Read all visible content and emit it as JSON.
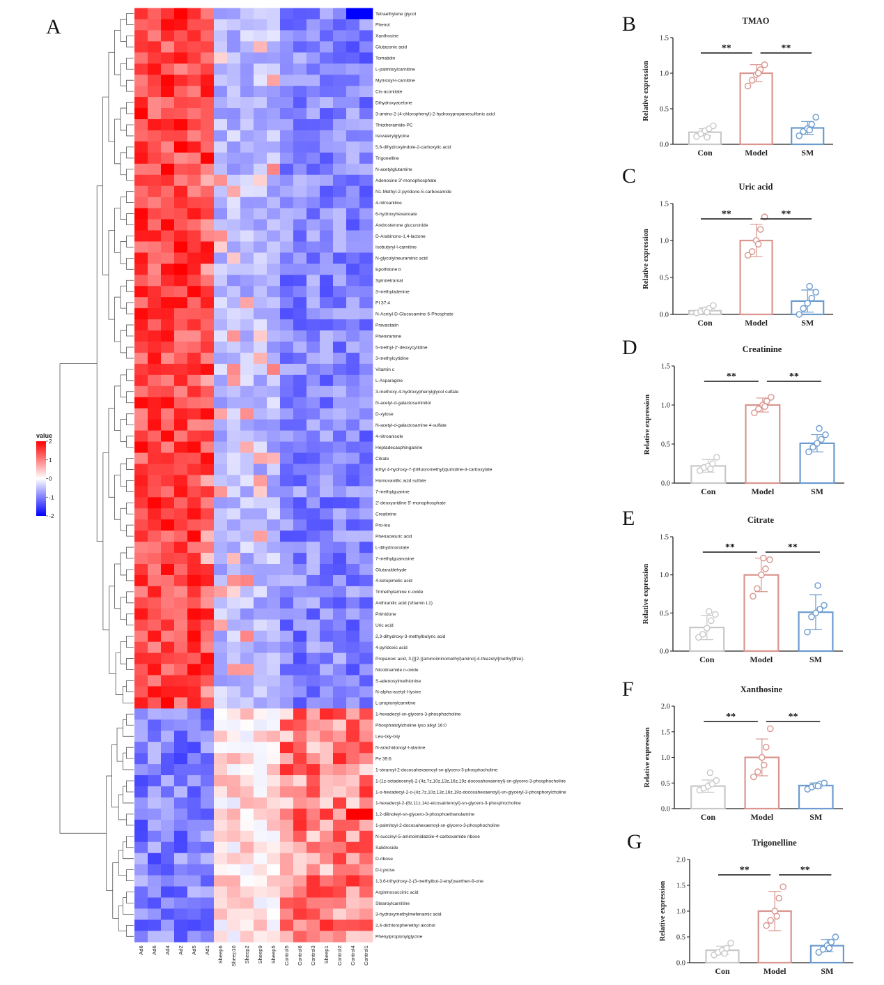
{
  "panel_letters": [
    "A",
    "B",
    "C",
    "D",
    "E",
    "F",
    "G"
  ],
  "chart_data": [
    {
      "type": "heatmap",
      "panel": "A",
      "columns": [
        "Ad6",
        "Ad6",
        "Ad4",
        "Ad2",
        "Ad5",
        "Ad1",
        "Sheep6",
        "Sheep10",
        "Sheep2",
        "Sheep9",
        "Sheep5",
        "Control5",
        "Control6",
        "Control3",
        "Sheep1",
        "Control2",
        "Control4",
        "Control1"
      ],
      "rows": [
        "Tetraethylene glycol",
        "Phenol",
        "Xanthosine",
        "Glutaconic acid",
        "Tomatidin",
        "L-palmitoylcarnitine",
        "Myristoyl-l-carnitine",
        "Cis-aconitate",
        "Dihydroxyacetone",
        "3-amino-2-(4-chlorophenyl)-2-hydroxypropanesulfonic acid",
        "Thiotheramide-PC",
        "Isovalerylglycine",
        "5,6-dihydroxyindole-2-carboxylic acid",
        "Trigonelline",
        "N-acetylglutamine",
        "Adenosine 3'-monophosphate",
        "N1-Methyl-2-pyridone-5-carboxamide",
        "4-nitroaniline",
        "6-hydroxyhexanoate",
        "Androsterone glucuronide",
        "D-Arabinono-1,4-lactone",
        "Isobutyryl-l-carnitine",
        "N-glycolylneuraminic acid",
        "Epothilone b",
        "Spirotetramat",
        "3-methyladenine",
        "PI 37:4",
        "N-Acetyl-D-Glucosamine 6-Phosphate",
        "Pravastatin",
        "Pheniramine",
        "5-methyl-2'-deoxycytidine",
        "3-methylcytidine",
        "Vitamin c",
        "L-Asparagine",
        "3-methoxy-4-hydroxyphenylglycol sulfate",
        "N-acetyl-d-galactosaminitol",
        "D-xylose",
        "N-acetyl-d-galactosamine 4-sulfate",
        "4-nitroanisole",
        "Heptadecasphinganine",
        "Citrate",
        "Ethyl 4-hydroxy-7-(trifluoromethyl)quinoline-3-carboxylate",
        "Homovanillic acid sulfate",
        "7-methylguanine",
        "2'-deoxyuridine 5'-monophosphate",
        "Creatinine",
        "Pro-leu",
        "Phenaceturic acid",
        "L-dihydroorotate",
        "7-methylguanosine",
        "Glutaraldehyde",
        "4-ketopimelic acid",
        "Trimethylamine n-oxide",
        "Anthranilic acid (Vitamin L1)",
        "Primidone",
        "Uric acid",
        "2,3-dihydroxy-3-methylbutyric acid",
        "4-pyridoxic acid",
        "Propanoic acid, 3-[[[2-[(aminoiminomethyl)amino]-4-thiazolyl]methyl]thio]-",
        "Nicotinamide n-oxide",
        "S-adenosylmethionine",
        "N-alpha-acetyl-l-lysine",
        "L-propionylcarnitine",
        "1-hexadecyl-sn-glycero-3-phosphocholine",
        "Phosphatidylcholine lyso alkyl 16:0",
        "Leu-Gly-Gly",
        "N-arachidonoyl-l-alanine",
        "Pe 39:6",
        "1-stearoyl-2-docosahexaenoyl-sn-glycero-3-phosphocholine",
        "1-(1z-octadecenyl)-2-(4z,7z,10z,13z,16z,19z-docosahexaenoyl)-sn-glycero-3-phosphocholine",
        "1-o-hexadecyl-2-o-(4z,7z,10z,13z,16z,19z-docosahexaenoyl)-sn-glyceryl-3-phosphorylcholine",
        "1-hexadecyl-2-(8z,11z,14z-eicosatrienoyl)-sn-glycero-3-phosphocholine",
        "1,2-dilinoleyl-sn-glycero-3-phosphoethanolamine",
        "1-palmitoyl-2-docosahexaenoyl-sn-glycero-3-phosphocholine",
        "N-succinyl-5-aminoimidazole-4-carboxamide ribose",
        "Salidroside",
        "D-ribose",
        "D-Lyxose",
        "1,3,6-trihydroxy-2-(3-methylbut-2-enyl)xanthen-9-one",
        "Argininosuccinic acid",
        "Stearoylcarnitine",
        "3-hydroxymethylmefenamic acid",
        "2,4-dichlorophenethyl alcohol",
        "Phenylpropionylglycine"
      ],
      "up_rows_count": 63,
      "color_scale": {
        "title": "value",
        "min": -2,
        "max": 2,
        "ticks": [
          "2",
          "1",
          "0",
          "-1",
          "-2"
        ],
        "low": "#0000ff",
        "mid": "#ffffff",
        "high": "#ff0000"
      }
    },
    {
      "type": "bar",
      "panel": "B",
      "title": "TMAO",
      "ylabel": "Relative expression",
      "categories": [
        "Con",
        "Model",
        "SM"
      ],
      "values": [
        0.17,
        1.0,
        0.23
      ],
      "errors": [
        0.05,
        0.12,
        0.09
      ],
      "points": [
        [
          0.11,
          0.15,
          0.19,
          0.22,
          0.26,
          0.1
        ],
        [
          0.82,
          0.9,
          0.98,
          1.05,
          1.12,
          1.0
        ],
        [
          0.12,
          0.18,
          0.22,
          0.28,
          0.38,
          0.2
        ]
      ],
      "yticks": [
        "0.0",
        "0.5",
        "1.0",
        "1.5"
      ],
      "ylim": [
        0,
        1.5
      ],
      "significance": [
        "**",
        "**"
      ],
      "colors": [
        "#c8c8c8",
        "#d9958e",
        "#6b9bcf"
      ]
    },
    {
      "type": "bar",
      "panel": "C",
      "title": "Uric acid",
      "ylabel": "Relative expression",
      "categories": [
        "Con",
        "Model",
        "SM"
      ],
      "values": [
        0.05,
        1.0,
        0.18
      ],
      "errors": [
        0.04,
        0.22,
        0.15
      ],
      "points": [
        [
          0.02,
          0.04,
          0.06,
          0.08,
          0.12,
          0.03
        ],
        [
          0.8,
          0.85,
          1.0,
          1.15,
          1.32,
          0.95
        ],
        [
          0.0,
          0.08,
          0.15,
          0.22,
          0.3,
          0.38
        ]
      ],
      "yticks": [
        "0.0",
        "0.5",
        "1.0",
        "1.5"
      ],
      "ylim": [
        0,
        1.5
      ],
      "significance": [
        "**",
        "**"
      ],
      "colors": [
        "#c8c8c8",
        "#d9958e",
        "#6b9bcf"
      ]
    },
    {
      "type": "bar",
      "panel": "D",
      "title": "Creatinine",
      "ylabel": "Relative expression",
      "categories": [
        "Con",
        "Model",
        "SM"
      ],
      "values": [
        0.22,
        1.0,
        0.51
      ],
      "errors": [
        0.08,
        0.09,
        0.11
      ],
      "points": [
        [
          0.16,
          0.2,
          0.22,
          0.25,
          0.33,
          0.18
        ],
        [
          0.9,
          0.95,
          1.0,
          1.05,
          1.1,
          0.98
        ],
        [
          0.4,
          0.46,
          0.51,
          0.56,
          0.62,
          0.7
        ]
      ],
      "yticks": [
        "0.0",
        "0.5",
        "1.0",
        "1.5"
      ],
      "ylim": [
        0,
        1.5
      ],
      "significance": [
        "**",
        "**"
      ],
      "colors": [
        "#c8c8c8",
        "#d9958e",
        "#6b9bcf"
      ]
    },
    {
      "type": "bar",
      "panel": "E",
      "title": "Citrate",
      "ylabel": "Relative expression",
      "categories": [
        "Con",
        "Model",
        "SM"
      ],
      "values": [
        0.31,
        1.0,
        0.51
      ],
      "errors": [
        0.16,
        0.22,
        0.23
      ],
      "points": [
        [
          0.18,
          0.22,
          0.3,
          0.4,
          0.48,
          0.52
        ],
        [
          0.72,
          0.82,
          1.0,
          1.08,
          1.2,
          1.22
        ],
        [
          0.25,
          0.45,
          0.5,
          0.55,
          0.6,
          0.86
        ]
      ],
      "yticks": [
        "0.0",
        "0.5",
        "1.0",
        "1.5"
      ],
      "ylim": [
        0,
        1.5
      ],
      "significance": [
        "**",
        "**"
      ],
      "colors": [
        "#c8c8c8",
        "#d9958e",
        "#6b9bcf"
      ]
    },
    {
      "type": "bar",
      "panel": "F",
      "title": "Xanthosine",
      "ylabel": "Relative expression",
      "categories": [
        "Con",
        "Model",
        "SM"
      ],
      "values": [
        0.44,
        1.0,
        0.45
      ],
      "errors": [
        0.12,
        0.36,
        0.05
      ],
      "points": [
        [
          0.36,
          0.4,
          0.44,
          0.48,
          0.55,
          0.7
        ],
        [
          0.62,
          0.72,
          1.0,
          1.2,
          1.56,
          0.85
        ],
        [
          0.38,
          0.42,
          0.45,
          0.48,
          0.5,
          0.44
        ]
      ],
      "yticks": [
        "0.0",
        "0.5",
        "1.0",
        "1.5",
        "2.0"
      ],
      "ylim": [
        0,
        2.0
      ],
      "significance": [
        "**",
        "**"
      ],
      "colors": [
        "#c8c8c8",
        "#d9958e",
        "#6b9bcf"
      ]
    },
    {
      "type": "bar",
      "panel": "G",
      "title": "Trigonelline",
      "ylabel": "Relative expression",
      "categories": [
        "Con",
        "Model",
        "SM"
      ],
      "values": [
        0.24,
        1.0,
        0.33
      ],
      "errors": [
        0.08,
        0.38,
        0.12
      ],
      "points": [
        [
          0.15,
          0.2,
          0.24,
          0.28,
          0.38,
          0.18
        ],
        [
          0.72,
          0.82,
          1.0,
          1.25,
          1.47,
          0.9
        ],
        [
          0.2,
          0.26,
          0.33,
          0.4,
          0.5,
          0.28
        ]
      ],
      "yticks": [
        "0.0",
        "0.5",
        "1.0",
        "1.5",
        "2.0"
      ],
      "ylim": [
        0,
        2.0
      ],
      "significance": [
        "**",
        "**"
      ],
      "colors": [
        "#c8c8c8",
        "#d9958e",
        "#6b9bcf"
      ]
    }
  ]
}
